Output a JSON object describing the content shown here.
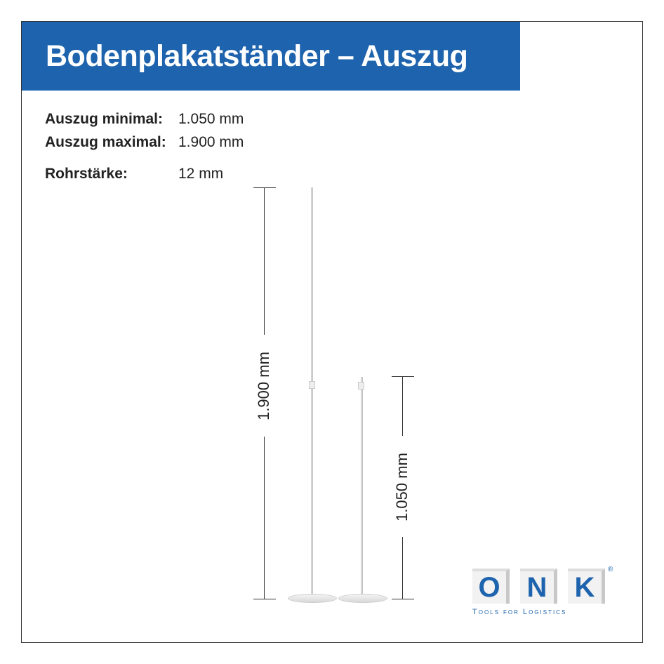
{
  "title": "Bodenplakatständer – Auszug",
  "specs": [
    {
      "label": "Auszug minimal:",
      "value": "1.050 mm"
    },
    {
      "label": "Auszug maximal:",
      "value": "1.900 mm"
    },
    {
      "label": "Rohrstärke:",
      "value": "12 mm"
    }
  ],
  "dimensions": {
    "max": "1.900 mm",
    "min": "1.050 mm"
  },
  "logo": {
    "letters": [
      "O",
      "N",
      "K"
    ],
    "tagline": "Tools for Logistics",
    "registered": "®"
  },
  "colors": {
    "brand_blue": "#1e63ad"
  }
}
